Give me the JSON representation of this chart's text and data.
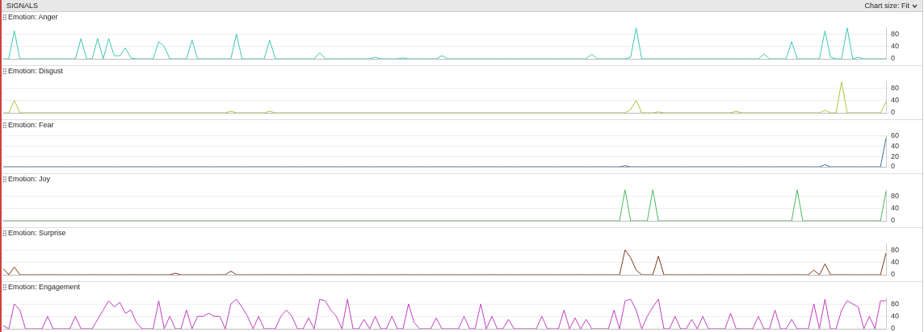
{
  "chart_data": [
    {
      "type": "line",
      "title": "Emotion: Anger",
      "annotations": [
        "SIGNALS",
        "Chart size: Fit"
      ],
      "color": "#3cc8b4",
      "ylim": [
        0,
        100
      ],
      "yticks": [
        0,
        40,
        80
      ],
      "grid": "y",
      "tick_labels": "y",
      "categories": [
        null,
        null,
        null,
        null,
        null,
        null,
        null,
        null,
        null,
        null,
        null,
        null,
        null,
        null,
        null,
        null,
        null,
        null,
        null,
        null,
        null,
        null,
        null,
        null,
        null,
        null,
        null,
        null,
        null,
        null,
        null,
        null,
        null,
        null,
        null,
        null,
        null,
        null,
        null,
        null,
        null,
        null,
        null,
        null,
        null,
        null,
        null,
        null,
        null,
        null,
        null,
        null,
        null,
        null,
        null,
        null,
        null,
        null,
        null,
        null,
        null,
        null,
        null,
        null,
        null,
        null,
        null,
        null,
        null,
        null,
        null,
        null,
        null,
        null,
        null,
        null,
        null,
        null,
        null,
        null,
        null,
        null,
        null,
        null,
        null,
        null,
        null,
        null,
        null,
        null,
        null,
        null,
        null,
        null,
        null,
        null,
        null,
        null,
        null,
        null,
        null,
        null,
        null,
        null,
        null,
        null,
        null,
        null,
        null,
        null,
        null,
        null,
        null,
        null,
        null,
        null,
        null,
        null,
        null,
        null,
        null,
        null,
        null,
        null,
        null,
        null,
        null,
        null,
        null,
        null,
        null,
        null,
        null,
        null,
        null,
        null,
        null,
        null,
        null,
        null,
        null,
        null,
        null,
        null,
        null,
        null,
        null,
        null,
        null,
        null,
        null,
        null,
        null,
        null,
        null,
        null,
        null,
        null,
        null,
        null
      ],
      "values": [
        0,
        0,
        90,
        0,
        0,
        0,
        0,
        0,
        0,
        0,
        0,
        0,
        0,
        0,
        65,
        0,
        0,
        65,
        0,
        65,
        10,
        10,
        35,
        3,
        0,
        0,
        0,
        0,
        55,
        40,
        0,
        0,
        0,
        0,
        60,
        0,
        0,
        0,
        0,
        0,
        0,
        0,
        80,
        0,
        0,
        0,
        0,
        0,
        60,
        0,
        0,
        0,
        0,
        0,
        0,
        0,
        0,
        20,
        0,
        0,
        0,
        0,
        0,
        0,
        0,
        0,
        0,
        5,
        0,
        0,
        0,
        0,
        3,
        0,
        0,
        0,
        0,
        0,
        0,
        10,
        0,
        0,
        0,
        0,
        0,
        0,
        0,
        0,
        0,
        0,
        0,
        0,
        0,
        0,
        0,
        0,
        0,
        0,
        0,
        0,
        0,
        0,
        0,
        0,
        0,
        0,
        15,
        0,
        0,
        0,
        0,
        0,
        0,
        5,
        100,
        0,
        0,
        0,
        0,
        0,
        0,
        0,
        0,
        0,
        0,
        0,
        0,
        0,
        0,
        0,
        0,
        0,
        0,
        0,
        0,
        0,
        0,
        15,
        0,
        0,
        0,
        0,
        55,
        0,
        0,
        0,
        0,
        0,
        90,
        5,
        0,
        0,
        100,
        0,
        5,
        0,
        0,
        0,
        0,
        0
      ]
    },
    {
      "type": "line",
      "title": "Emotion: Disgust",
      "color": "#a8c83c",
      "ylim": [
        0,
        100
      ],
      "yticks": [
        0,
        40,
        80
      ],
      "grid": "y",
      "tick_labels": "y",
      "categories": [
        null,
        null,
        null,
        null,
        null,
        null,
        null,
        null,
        null,
        null,
        null,
        null,
        null,
        null,
        null,
        null,
        null,
        null,
        null,
        null,
        null,
        null,
        null,
        null,
        null,
        null,
        null,
        null,
        null,
        null,
        null,
        null,
        null,
        null,
        null,
        null,
        null,
        null,
        null,
        null,
        null,
        null,
        null,
        null,
        null,
        null,
        null,
        null,
        null,
        null,
        null,
        null,
        null,
        null,
        null,
        null,
        null,
        null,
        null,
        null,
        null,
        null,
        null,
        null,
        null,
        null,
        null,
        null,
        null,
        null,
        null,
        null,
        null,
        null,
        null,
        null,
        null,
        null,
        null,
        null,
        null,
        null,
        null,
        null,
        null,
        null,
        null,
        null,
        null,
        null,
        null,
        null,
        null,
        null,
        null,
        null,
        null,
        null,
        null,
        null,
        null,
        null,
        null,
        null,
        null,
        null,
        null,
        null,
        null,
        null,
        null,
        null,
        null,
        null,
        null,
        null,
        null,
        null,
        null,
        null,
        null,
        null,
        null,
        null,
        null,
        null,
        null,
        null,
        null,
        null,
        null,
        null,
        null,
        null,
        null,
        null,
        null,
        null,
        null,
        null,
        null,
        null,
        null,
        null,
        null,
        null,
        null,
        null,
        null,
        null,
        null,
        null,
        null,
        null,
        null,
        null,
        null,
        null,
        null,
        null
      ],
      "values": [
        0,
        0,
        40,
        0,
        0,
        0,
        0,
        0,
        0,
        0,
        0,
        0,
        0,
        0,
        0,
        0,
        0,
        0,
        0,
        0,
        0,
        0,
        0,
        0,
        0,
        0,
        0,
        0,
        0,
        0,
        0,
        0,
        0,
        0,
        0,
        0,
        0,
        0,
        0,
        0,
        0,
        5,
        0,
        0,
        0,
        0,
        0,
        0,
        5,
        0,
        0,
        0,
        0,
        0,
        0,
        0,
        0,
        0,
        0,
        0,
        0,
        0,
        0,
        0,
        0,
        0,
        0,
        0,
        0,
        0,
        0,
        0,
        0,
        0,
        0,
        0,
        0,
        0,
        0,
        0,
        0,
        0,
        0,
        0,
        0,
        0,
        0,
        0,
        0,
        0,
        0,
        0,
        0,
        0,
        0,
        0,
        0,
        0,
        0,
        0,
        0,
        0,
        0,
        0,
        0,
        0,
        0,
        0,
        0,
        0,
        0,
        0,
        0,
        10,
        40,
        0,
        0,
        0,
        3,
        0,
        0,
        0,
        0,
        0,
        0,
        0,
        0,
        0,
        0,
        0,
        0,
        0,
        5,
        0,
        0,
        0,
        0,
        0,
        0,
        0,
        0,
        0,
        0,
        0,
        0,
        0,
        0,
        0,
        8,
        0,
        0,
        100,
        0,
        0,
        0,
        0,
        0,
        0,
        0,
        35
      ]
    },
    {
      "type": "line",
      "title": "Emotion: Fear",
      "color": "#3a6ea5",
      "ylim": [
        0,
        60
      ],
      "yticks": [
        0,
        20,
        40,
        60
      ],
      "grid": "y",
      "tick_labels": "y",
      "categories": [
        null,
        null,
        null,
        null,
        null,
        null,
        null,
        null,
        null,
        null,
        null,
        null,
        null,
        null,
        null,
        null,
        null,
        null,
        null,
        null,
        null,
        null,
        null,
        null,
        null,
        null,
        null,
        null,
        null,
        null,
        null,
        null,
        null,
        null,
        null,
        null,
        null,
        null,
        null,
        null,
        null,
        null,
        null,
        null,
        null,
        null,
        null,
        null,
        null,
        null,
        null,
        null,
        null,
        null,
        null,
        null,
        null,
        null,
        null,
        null,
        null,
        null,
        null,
        null,
        null,
        null,
        null,
        null,
        null,
        null,
        null,
        null,
        null,
        null,
        null,
        null,
        null,
        null,
        null,
        null,
        null,
        null,
        null,
        null,
        null,
        null,
        null,
        null,
        null,
        null,
        null,
        null,
        null,
        null,
        null,
        null,
        null,
        null,
        null,
        null,
        null,
        null,
        null,
        null,
        null,
        null,
        null,
        null,
        null,
        null,
        null,
        null,
        null,
        null,
        null,
        null,
        null,
        null,
        null,
        null,
        null,
        null,
        null,
        null,
        null,
        null,
        null,
        null,
        null,
        null,
        null,
        null,
        null,
        null,
        null,
        null,
        null,
        null,
        null,
        null,
        null,
        null,
        null,
        null,
        null,
        null,
        null,
        null,
        null,
        null,
        null,
        null,
        null,
        null,
        null,
        null,
        null,
        null,
        null,
        null
      ],
      "values": [
        0,
        0,
        0,
        0,
        0,
        0,
        0,
        0,
        0,
        0,
        0,
        0,
        0,
        0,
        0,
        0,
        0,
        0,
        0,
        0,
        0,
        0,
        0,
        0,
        0,
        0,
        0,
        0,
        0,
        0,
        0,
        0,
        0,
        0,
        0,
        0,
        0,
        0,
        0,
        0,
        0,
        0,
        0,
        0,
        0,
        0,
        0,
        0,
        0,
        0,
        0,
        0,
        0,
        0,
        0,
        0,
        0,
        0,
        0,
        0,
        0,
        0,
        0,
        0,
        0,
        0,
        0,
        0,
        0,
        0,
        0,
        0,
        0,
        0,
        0,
        0,
        0,
        0,
        0,
        0,
        0,
        0,
        0,
        0,
        0,
        0,
        0,
        0,
        0,
        0,
        0,
        0,
        0,
        0,
        0,
        0,
        0,
        0,
        0,
        0,
        0,
        0,
        0,
        0,
        0,
        0,
        0,
        0,
        0,
        0,
        0,
        0,
        2,
        0,
        0,
        0,
        0,
        0,
        0,
        0,
        0,
        0,
        0,
        0,
        0,
        0,
        0,
        0,
        0,
        0,
        0,
        0,
        0,
        0,
        0,
        0,
        0,
        0,
        0,
        0,
        0,
        0,
        0,
        0,
        0,
        0,
        0,
        0,
        4,
        0,
        0,
        0,
        0,
        0,
        0,
        0,
        0,
        0,
        0,
        55
      ]
    },
    {
      "type": "line",
      "title": "Emotion: Joy",
      "color": "#4cb860",
      "ylim": [
        0,
        100
      ],
      "yticks": [
        0,
        40,
        80
      ],
      "grid": "y",
      "tick_labels": "y",
      "categories": [
        null,
        null,
        null,
        null,
        null,
        null,
        null,
        null,
        null,
        null,
        null,
        null,
        null,
        null,
        null,
        null,
        null,
        null,
        null,
        null,
        null,
        null,
        null,
        null,
        null,
        null,
        null,
        null,
        null,
        null,
        null,
        null,
        null,
        null,
        null,
        null,
        null,
        null,
        null,
        null,
        null,
        null,
        null,
        null,
        null,
        null,
        null,
        null,
        null,
        null,
        null,
        null,
        null,
        null,
        null,
        null,
        null,
        null,
        null,
        null,
        null,
        null,
        null,
        null,
        null,
        null,
        null,
        null,
        null,
        null,
        null,
        null,
        null,
        null,
        null,
        null,
        null,
        null,
        null,
        null,
        null,
        null,
        null,
        null,
        null,
        null,
        null,
        null,
        null,
        null,
        null,
        null,
        null,
        null,
        null,
        null,
        null,
        null,
        null,
        null,
        null,
        null,
        null,
        null,
        null,
        null,
        null,
        null,
        null,
        null,
        null,
        null,
        null,
        null,
        null,
        null,
        null,
        null,
        null,
        null,
        null,
        null,
        null,
        null,
        null,
        null,
        null,
        null,
        null,
        null,
        null,
        null,
        null,
        null,
        null,
        null,
        null,
        null,
        null,
        null,
        null,
        null,
        null,
        null,
        null,
        null,
        null,
        null,
        null,
        null,
        null,
        null,
        null,
        null,
        null,
        null,
        null,
        null,
        null,
        null
      ],
      "values": [
        0,
        0,
        0,
        0,
        0,
        0,
        0,
        0,
        0,
        0,
        0,
        0,
        0,
        0,
        0,
        0,
        0,
        0,
        0,
        0,
        0,
        0,
        0,
        0,
        0,
        0,
        0,
        0,
        0,
        0,
        0,
        0,
        0,
        0,
        0,
        0,
        0,
        0,
        0,
        0,
        0,
        0,
        0,
        0,
        0,
        0,
        0,
        0,
        0,
        0,
        0,
        0,
        0,
        0,
        0,
        0,
        0,
        0,
        0,
        0,
        0,
        0,
        0,
        0,
        0,
        0,
        0,
        0,
        0,
        0,
        0,
        0,
        0,
        0,
        0,
        0,
        0,
        0,
        0,
        0,
        0,
        0,
        0,
        0,
        0,
        0,
        0,
        0,
        0,
        0,
        0,
        0,
        0,
        0,
        0,
        0,
        0,
        0,
        0,
        0,
        0,
        0,
        0,
        0,
        0,
        0,
        0,
        0,
        0,
        0,
        0,
        0,
        100,
        0,
        0,
        0,
        0,
        100,
        0,
        0,
        0,
        0,
        0,
        0,
        0,
        0,
        0,
        0,
        0,
        0,
        0,
        0,
        0,
        0,
        0,
        0,
        0,
        0,
        0,
        0,
        0,
        0,
        0,
        100,
        0,
        0,
        0,
        0,
        0,
        0,
        0,
        0,
        0,
        0,
        0,
        0,
        0,
        0,
        0,
        95
      ]
    },
    {
      "type": "line",
      "title": "Emotion: Surprise",
      "color": "#7a3a1e",
      "ylim": [
        0,
        100
      ],
      "yticks": [
        0,
        40,
        80
      ],
      "grid": "y",
      "tick_labels": "y",
      "categories": [
        null,
        null,
        null,
        null,
        null,
        null,
        null,
        null,
        null,
        null,
        null,
        null,
        null,
        null,
        null,
        null,
        null,
        null,
        null,
        null,
        null,
        null,
        null,
        null,
        null,
        null,
        null,
        null,
        null,
        null,
        null,
        null,
        null,
        null,
        null,
        null,
        null,
        null,
        null,
        null,
        null,
        null,
        null,
        null,
        null,
        null,
        null,
        null,
        null,
        null,
        null,
        null,
        null,
        null,
        null,
        null,
        null,
        null,
        null,
        null,
        null,
        null,
        null,
        null,
        null,
        null,
        null,
        null,
        null,
        null,
        null,
        null,
        null,
        null,
        null,
        null,
        null,
        null,
        null,
        null,
        null,
        null,
        null,
        null,
        null,
        null,
        null,
        null,
        null,
        null,
        null,
        null,
        null,
        null,
        null,
        null,
        null,
        null,
        null,
        null,
        null,
        null,
        null,
        null,
        null,
        null,
        null,
        null,
        null,
        null,
        null,
        null,
        null,
        null,
        null,
        null,
        null,
        null,
        null,
        null,
        null,
        null,
        null,
        null,
        null,
        null,
        null,
        null,
        null,
        null,
        null,
        null,
        null,
        null,
        null,
        null,
        null,
        null,
        null,
        null,
        null,
        null,
        null,
        null,
        null,
        null,
        null,
        null,
        null,
        null,
        null,
        null,
        null,
        null,
        null,
        null,
        null,
        null,
        null,
        null
      ],
      "values": [
        20,
        0,
        25,
        0,
        0,
        0,
        0,
        0,
        0,
        0,
        0,
        0,
        0,
        0,
        0,
        0,
        0,
        0,
        0,
        0,
        0,
        0,
        0,
        0,
        0,
        0,
        0,
        0,
        0,
        0,
        0,
        5,
        0,
        0,
        0,
        0,
        0,
        0,
        0,
        0,
        0,
        12,
        0,
        0,
        0,
        0,
        0,
        0,
        0,
        0,
        0,
        0,
        0,
        0,
        0,
        0,
        0,
        0,
        0,
        0,
        0,
        0,
        0,
        0,
        0,
        0,
        0,
        0,
        0,
        0,
        0,
        0,
        0,
        0,
        0,
        0,
        0,
        0,
        0,
        0,
        0,
        0,
        0,
        0,
        0,
        0,
        0,
        0,
        0,
        0,
        0,
        0,
        0,
        0,
        0,
        0,
        0,
        0,
        0,
        0,
        0,
        0,
        0,
        0,
        0,
        0,
        0,
        0,
        0,
        0,
        0,
        0,
        80,
        55,
        15,
        0,
        0,
        0,
        60,
        0,
        0,
        0,
        0,
        0,
        0,
        0,
        0,
        0,
        0,
        0,
        0,
        0,
        0,
        0,
        0,
        0,
        0,
        0,
        0,
        0,
        0,
        0,
        0,
        0,
        0,
        0,
        15,
        0,
        35,
        0,
        0,
        0,
        0,
        0,
        0,
        0,
        0,
        0,
        0,
        70
      ]
    },
    {
      "type": "line",
      "title": "Emotion: Engagement",
      "color": "#c040c0",
      "ylim": [
        0,
        100
      ],
      "yticks": [
        0,
        40,
        80
      ],
      "grid": "y",
      "tick_labels": "y",
      "categories": [
        null,
        null,
        null,
        null,
        null,
        null,
        null,
        null,
        null,
        null,
        null,
        null,
        null,
        null,
        null,
        null,
        null,
        null,
        null,
        null,
        null,
        null,
        null,
        null,
        null,
        null,
        null,
        null,
        null,
        null,
        null,
        null,
        null,
        null,
        null,
        null,
        null,
        null,
        null,
        null,
        null,
        null,
        null,
        null,
        null,
        null,
        null,
        null,
        null,
        null,
        null,
        null,
        null,
        null,
        null,
        null,
        null,
        null,
        null,
        null,
        null,
        null,
        null,
        null,
        null,
        null,
        null,
        null,
        null,
        null,
        null,
        null,
        null,
        null,
        null,
        null,
        null,
        null,
        null,
        null,
        null,
        null,
        null,
        null,
        null,
        null,
        null,
        null,
        null,
        null,
        null,
        null,
        null,
        null,
        null,
        null,
        null,
        null,
        null,
        null,
        null,
        null,
        null,
        null,
        null,
        null,
        null,
        null,
        null,
        null,
        null,
        null,
        null,
        null,
        null,
        null,
        null,
        null,
        null,
        null,
        null,
        null,
        null,
        null,
        null,
        null,
        null,
        null,
        null,
        null,
        null,
        null,
        null,
        null,
        null,
        null,
        null,
        null,
        null,
        null,
        null,
        null,
        null,
        null,
        null,
        null,
        null,
        null,
        null,
        null,
        null,
        null,
        null,
        null,
        null,
        null,
        null,
        null,
        null,
        null
      ],
      "values": [
        10,
        0,
        80,
        60,
        0,
        0,
        0,
        0,
        40,
        0,
        0,
        0,
        0,
        40,
        0,
        0,
        0,
        30,
        60,
        90,
        70,
        85,
        50,
        60,
        20,
        0,
        0,
        0,
        90,
        0,
        40,
        0,
        0,
        60,
        0,
        40,
        40,
        50,
        40,
        40,
        0,
        80,
        95,
        70,
        40,
        0,
        40,
        0,
        0,
        0,
        40,
        60,
        40,
        0,
        0,
        35,
        0,
        95,
        90,
        60,
        40,
        0,
        95,
        0,
        0,
        30,
        0,
        40,
        0,
        0,
        40,
        0,
        0,
        80,
        20,
        0,
        0,
        0,
        35,
        0,
        0,
        0,
        0,
        40,
        0,
        0,
        80,
        0,
        40,
        0,
        0,
        30,
        0,
        0,
        0,
        0,
        0,
        40,
        0,
        0,
        0,
        60,
        0,
        35,
        0,
        30,
        0,
        0,
        0,
        0,
        60,
        0,
        90,
        95,
        60,
        0,
        40,
        70,
        95,
        0,
        0,
        40,
        0,
        0,
        30,
        0,
        40,
        0,
        0,
        0,
        0,
        50,
        0,
        0,
        0,
        0,
        40,
        0,
        0,
        60,
        0,
        0,
        30,
        0,
        0,
        0,
        80,
        0,
        95,
        0,
        0,
        60,
        90,
        80,
        70,
        0,
        40,
        0,
        90,
        90
      ]
    }
  ]
}
